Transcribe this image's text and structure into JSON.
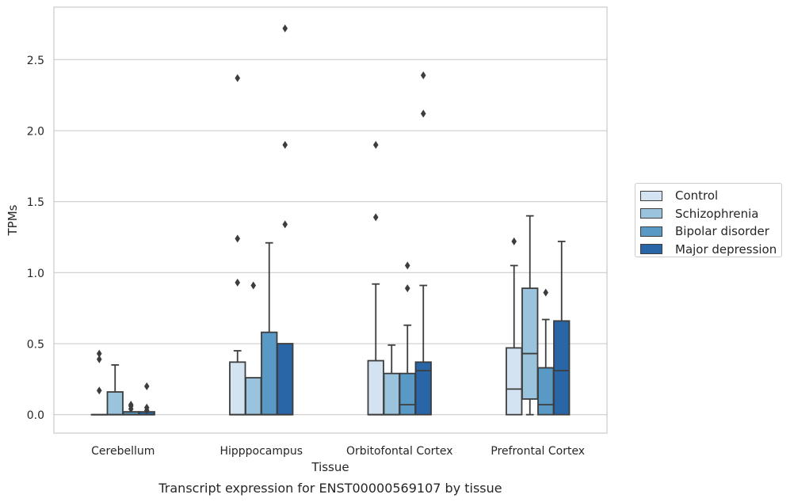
{
  "chart_data": {
    "type": "box",
    "ylabel": "TPMs",
    "xlabel": "Tissue",
    "caption": "Transcript expression for ENST00000569107 by tissue",
    "ylim": [
      -0.13,
      2.87
    ],
    "yticks": [
      "0.0",
      "0.5",
      "1.0",
      "1.5",
      "2.0",
      "2.5"
    ],
    "grid": "horizontal",
    "legend_position": "right",
    "categories": [
      "Cerebellum",
      "Hipppocampus",
      "Orbitofontal Cortex",
      "Prefrontal Cortex"
    ],
    "series": [
      {
        "name": "Control",
        "color": "#d4e3f2",
        "boxes": [
          {
            "q1": 0.0,
            "median": 0.0,
            "q3": 0.0,
            "whisker_low": 0.0,
            "whisker_high": 0.0,
            "outliers": [
              0.17,
              0.39,
              0.43
            ]
          },
          {
            "q1": 0.0,
            "median": 0.0,
            "q3": 0.37,
            "whisker_low": 0.0,
            "whisker_high": 0.45,
            "outliers": [
              0.93,
              1.24,
              2.37
            ]
          },
          {
            "q1": 0.0,
            "median": 0.0,
            "q3": 0.38,
            "whisker_low": 0.0,
            "whisker_high": 0.92,
            "outliers": [
              1.39,
              1.9
            ]
          },
          {
            "q1": 0.0,
            "median": 0.18,
            "q3": 0.47,
            "whisker_low": 0.0,
            "whisker_high": 1.05,
            "outliers": [
              1.22
            ]
          }
        ]
      },
      {
        "name": "Schizophrenia",
        "color": "#9ac4dd",
        "boxes": [
          {
            "q1": 0.0,
            "median": 0.0,
            "q3": 0.16,
            "whisker_low": 0.0,
            "whisker_high": 0.35,
            "outliers": []
          },
          {
            "q1": 0.0,
            "median": 0.0,
            "q3": 0.26,
            "whisker_low": 0.0,
            "whisker_high": 0.26,
            "outliers": [
              0.91
            ]
          },
          {
            "q1": 0.0,
            "median": 0.0,
            "q3": 0.29,
            "whisker_low": 0.0,
            "whisker_high": 0.49,
            "outliers": []
          },
          {
            "q1": 0.11,
            "median": 0.43,
            "q3": 0.89,
            "whisker_low": 0.0,
            "whisker_high": 1.4,
            "outliers": []
          }
        ]
      },
      {
        "name": "Bipolar disorder",
        "color": "#5899c6",
        "boxes": [
          {
            "q1": 0.0,
            "median": 0.0,
            "q3": 0.02,
            "whisker_low": 0.0,
            "whisker_high": 0.02,
            "outliers": [
              0.04,
              0.06,
              0.07
            ]
          },
          {
            "q1": 0.0,
            "median": 0.0,
            "q3": 0.58,
            "whisker_low": 0.0,
            "whisker_high": 1.21,
            "outliers": []
          },
          {
            "q1": 0.0,
            "median": 0.07,
            "q3": 0.29,
            "whisker_low": 0.0,
            "whisker_high": 0.63,
            "outliers": [
              0.89,
              1.05
            ]
          },
          {
            "q1": 0.0,
            "median": 0.07,
            "q3": 0.33,
            "whisker_low": 0.0,
            "whisker_high": 0.67,
            "outliers": [
              0.86
            ]
          }
        ]
      },
      {
        "name": "Major depression",
        "color": "#2966a8",
        "boxes": [
          {
            "q1": 0.0,
            "median": 0.0,
            "q3": 0.02,
            "whisker_low": 0.0,
            "whisker_high": 0.02,
            "outliers": [
              0.03,
              0.05,
              0.2
            ]
          },
          {
            "q1": 0.0,
            "median": 0.0,
            "q3": 0.5,
            "whisker_low": 0.0,
            "whisker_high": 0.5,
            "outliers": [
              1.34,
              1.9,
              2.72
            ]
          },
          {
            "q1": 0.0,
            "median": 0.31,
            "q3": 0.37,
            "whisker_low": 0.0,
            "whisker_high": 0.91,
            "outliers": [
              2.12,
              2.39
            ]
          },
          {
            "q1": 0.0,
            "median": 0.31,
            "q3": 0.66,
            "whisker_low": 0.0,
            "whisker_high": 1.22,
            "outliers": []
          }
        ]
      }
    ]
  }
}
